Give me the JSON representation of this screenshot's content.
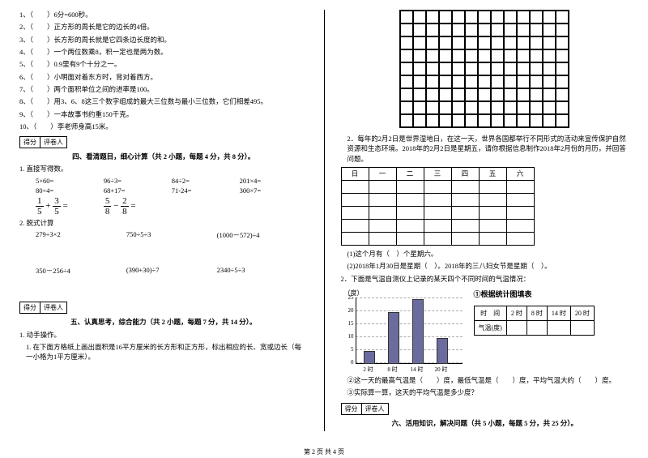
{
  "left": {
    "q1": "1、（　　）6分=600秒。",
    "q2": "2、（　　）正方形的周长是它的边长的4倍。",
    "q3": "3、（　　）长方形的周长就是它四条边长度的和。",
    "q4": "4、（　　）一个两位数乘8，积一定也是两为数。",
    "q5": "5、（　　）0.9里有9个十分之一。",
    "q6": "6、（　　）小明面对着东方时，背对着西方。",
    "q7": "7、（　　）两个面积单位之间的进率是100。",
    "q8": "8、（　　）用3、6、8这三个数字组成的最大三位数与最小三位数，它们相差495。",
    "q9": "9、（　　）一本故事书约重150千克。",
    "q10": "10、（　　）李老师身高15米。",
    "scoreLabel1": "得分",
    "scoreLabel2": "评卷人",
    "sec4": "四、看清题目，细心计算（共 2 小题，每题 4 分，共 8 分）。",
    "t1": "1. 直接写得数。",
    "row1": {
      "a": "5×60=",
      "b": "96÷3=",
      "c": "84÷2=",
      "d": "201×4="
    },
    "row2": {
      "a": "80÷4=",
      "b": "68+17=",
      "c": "71-24=",
      "d": "300×7="
    },
    "frac1": {
      "n1": "1",
      "d1": "5",
      "op1": "+",
      "n2": "3",
      "d2": "5",
      "eq": "="
    },
    "frac2": {
      "n1": "5",
      "d1": "8",
      "op1": "−",
      "n2": "2",
      "d2": "8",
      "eq": "="
    },
    "t2": "2. 脱式计算",
    "row3": {
      "a": "279÷3×2",
      "b": "750÷5÷3",
      "c": "(1000－572)÷4"
    },
    "row4": {
      "a": "350－256÷4",
      "b": "(390+30)÷7",
      "c": "2340÷5÷3"
    },
    "sec5": "五、认真思考，综合能力（共 2 小题，每题 7 分，共 14 分）。",
    "t5_1": "1. 动手操作。",
    "t5_1_text": "1. 在下面方格纸上画出面积是16平方厘米的长方形和正方形，标出相应的长、宽或边长（每一小格为1平方厘米）。"
  },
  "right": {
    "grid1": {
      "cols": 13,
      "rows": 9,
      "cell": 16
    },
    "p2": "2．每年的2月2日是世界湿地日，在这一天，世界各国都举行不同形式的活动来宣传保护自然资源和生态环境。2018年的2月2日是星期五，请你根据信息制作2018年2月份的月历，并回答问题。",
    "cal": {
      "head": [
        "日",
        "一",
        "二",
        "三",
        "四",
        "五",
        "六"
      ],
      "rows": 5
    },
    "q1": "(1)这个月有（　）个星期六。",
    "q2": "(2)2018年1月30日是星期（　）。2018年的三八妇女节是星期（　）。",
    "p3": "2．下面是气温自测仪上记录的某天四个不同时间的气温情况：",
    "chart": {
      "ylabel": "（度）",
      "title": "①根据统计图填表",
      "yticks": [
        0,
        5,
        10,
        15,
        20,
        25
      ],
      "xlabels": [
        "2 时",
        "8 时",
        "14 时",
        "20 时"
      ],
      "values": [
        5,
        20,
        25,
        10
      ],
      "barColor": "#6b6b9e",
      "ylim": [
        0,
        25
      ]
    },
    "table": {
      "r1": [
        "时　间",
        "2 时",
        "8 时",
        "14 时",
        "20 时"
      ],
      "r2": [
        "气温(度)",
        "",
        "",
        "",
        ""
      ]
    },
    "q3": "②这一天的最高气温是（　　）度，最低气温是（　　）度，平均气温大约（　　）度。",
    "q4": "③实际算一算，这天的平均气温是多少度？",
    "sec6": "六、活用知识，解决问题（共 5 小题，每题 5 分，共 25 分）。",
    "scoreLabel1": "得分",
    "scoreLabel2": "评卷人"
  },
  "footer": "第 2 页 共 4 页"
}
